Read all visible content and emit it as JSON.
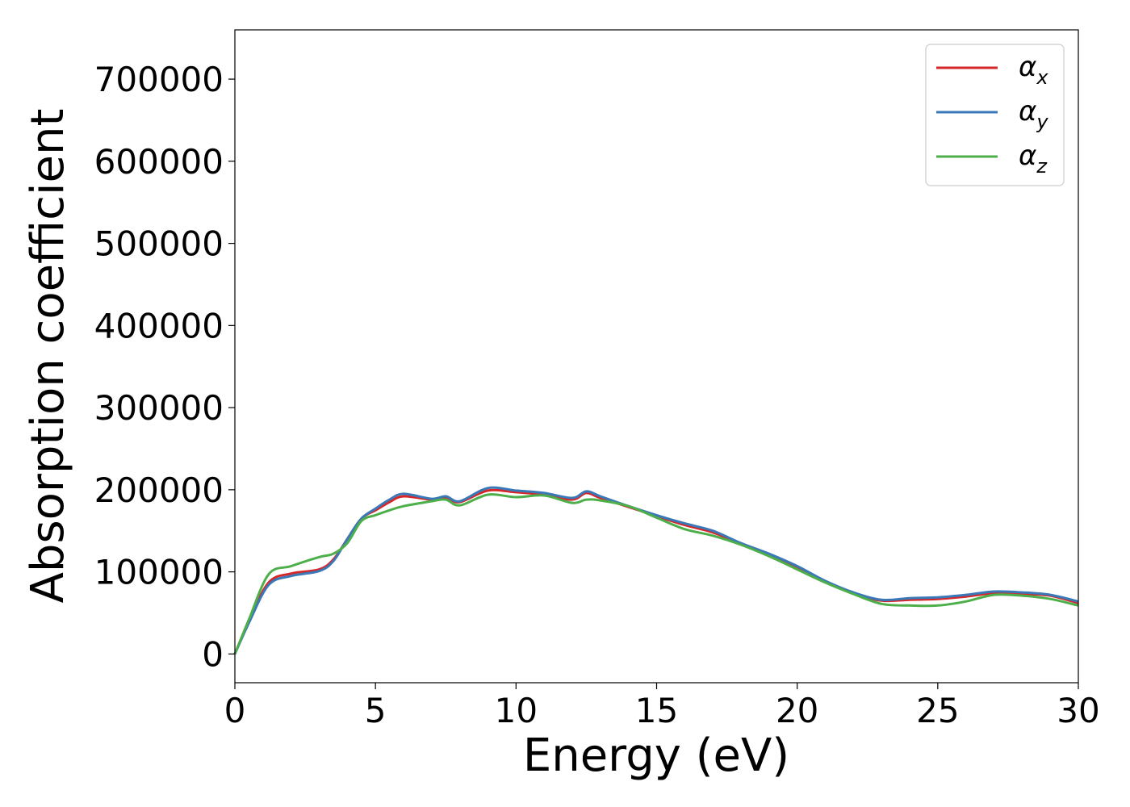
{
  "chart_data": {
    "type": "line",
    "title": "",
    "xlabel": "Energy (eV)",
    "ylabel": "Absorption coefficient",
    "xlim": [
      0,
      30
    ],
    "ylim": [
      -35000,
      760000
    ],
    "xticks": [
      0,
      5,
      10,
      15,
      20,
      25,
      30
    ],
    "yticks": [
      0,
      100000,
      200000,
      300000,
      400000,
      500000,
      600000,
      700000
    ],
    "xtick_labels": [
      "0",
      "5",
      "10",
      "15",
      "20",
      "25",
      "30"
    ],
    "ytick_labels": [
      "0",
      "100000",
      "200000",
      "300000",
      "400000",
      "500000",
      "600000",
      "700000"
    ],
    "grid": false,
    "legend_position": "top-right",
    "x": [
      0,
      0.5,
      1.2,
      2,
      3,
      3.5,
      4,
      4.5,
      5,
      5.5,
      6,
      7,
      7.5,
      8,
      9,
      10,
      11,
      12,
      12.5,
      13,
      14,
      15,
      16,
      17,
      18,
      19,
      20,
      21,
      22,
      23,
      24,
      25,
      26,
      27,
      28,
      29,
      30
    ],
    "series": [
      {
        "name": "α",
        "subscript": "x",
        "color": "#d62728",
        "values": [
          0,
          40000,
          87000,
          98000,
          103000,
          115000,
          140000,
          165000,
          175000,
          185000,
          192000,
          188000,
          190000,
          185000,
          199000,
          197000,
          194000,
          188000,
          196000,
          190000,
          179000,
          168000,
          157000,
          148000,
          134000,
          121000,
          105000,
          88000,
          74000,
          65000,
          66000,
          67000,
          70000,
          74000,
          73000,
          71000,
          62000
        ]
      },
      {
        "name": "α",
        "subscript": "y",
        "color": "#3a78b8",
        "values": [
          0,
          38000,
          84000,
          95000,
          101000,
          113000,
          140000,
          165000,
          177000,
          188000,
          195000,
          189000,
          192000,
          186000,
          202000,
          199000,
          196000,
          190000,
          198000,
          192000,
          180000,
          169000,
          159000,
          150000,
          135000,
          122000,
          107000,
          89000,
          75000,
          66000,
          68000,
          69000,
          72000,
          76000,
          75000,
          72000,
          64000
        ]
      },
      {
        "name": "α",
        "subscript": "z",
        "color": "#4daf4a",
        "values": [
          0,
          42000,
          97000,
          107000,
          118000,
          122000,
          135000,
          162000,
          169000,
          175000,
          180000,
          186000,
          188000,
          181000,
          194000,
          191000,
          193000,
          184000,
          188000,
          187000,
          180000,
          166000,
          152000,
          144000,
          133000,
          119000,
          103000,
          87000,
          73000,
          61000,
          59000,
          59000,
          64000,
          72000,
          71000,
          67000,
          59000
        ]
      }
    ]
  }
}
